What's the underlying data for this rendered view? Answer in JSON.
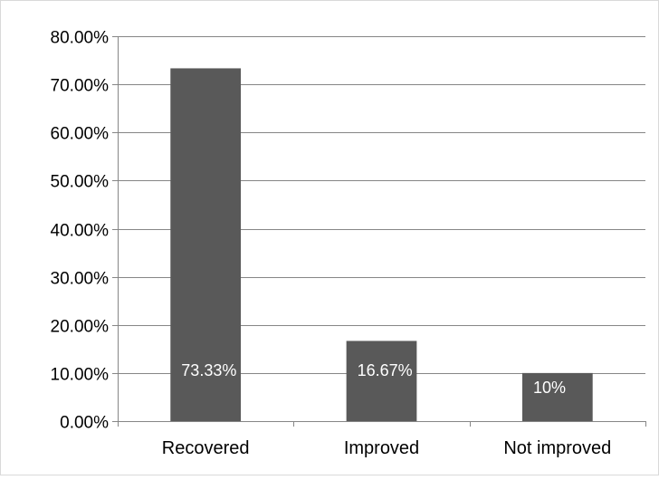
{
  "chart_data": {
    "type": "bar",
    "title": "",
    "xlabel": "",
    "ylabel": "",
    "categories": [
      "Recovered",
      "Improved",
      "Not improved"
    ],
    "values": [
      73.33,
      16.67,
      10
    ],
    "data_labels": [
      "73.33%",
      "16.67%",
      "10%"
    ],
    "ylim": [
      0,
      80
    ],
    "yticks": [
      0,
      10,
      20,
      30,
      40,
      50,
      60,
      70,
      80
    ],
    "ytick_labels": [
      "0.00%",
      "10.00%",
      "20.00%",
      "30.00%",
      "40.00%",
      "50.00%",
      "60.00%",
      "70.00%",
      "80.00%"
    ],
    "bar_color": "#595959",
    "grid": true,
    "legend": "none"
  }
}
